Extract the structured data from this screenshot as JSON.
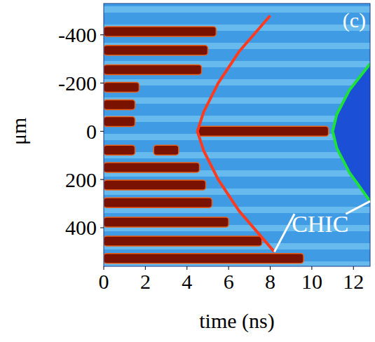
{
  "chart_data": {
    "type": "streak_image",
    "title": "(c)",
    "x_label": "time (ns)",
    "y_label": "μm",
    "xlim": [
      0,
      12.8
    ],
    "ylim": [
      560,
      -530
    ],
    "xticks": [
      0,
      2,
      4,
      6,
      8,
      10,
      12
    ],
    "yticks": [
      -400,
      -200,
      0,
      200,
      400
    ],
    "stripes": [
      {
        "y": -414,
        "t0": 0,
        "t1": 5.4
      },
      {
        "y": -336,
        "t0": 0,
        "t1": 5.0
      },
      {
        "y": -255,
        "t0": 0,
        "t1": 4.7
      },
      {
        "y": -183,
        "t0": 0,
        "t1": 1.7
      },
      {
        "y": -110,
        "t0": 0,
        "t1": 1.5
      },
      {
        "y": -40,
        "t0": 0,
        "t1": 1.5
      },
      {
        "y": 0,
        "t0": 4.5,
        "t1": 10.8
      },
      {
        "y": 78,
        "t0": 0,
        "t1": 1.5
      },
      {
        "y": 78,
        "t0": 2.4,
        "t1": 3.6
      },
      {
        "y": 150,
        "t0": 0,
        "t1": 4.6
      },
      {
        "y": 223,
        "t0": 0,
        "t1": 4.9
      },
      {
        "y": 296,
        "t0": 0,
        "t1": 5.2
      },
      {
        "y": 377,
        "t0": 0,
        "t1": 6.0
      },
      {
        "y": 455,
        "t0": 0,
        "t1": 7.6
      },
      {
        "y": 527,
        "t0": 0,
        "t1": 9.6
      }
    ],
    "series": [
      {
        "color": "#ff3b1f",
        "x": [
          8.0,
          6.5,
          5.5,
          4.8,
          4.5,
          4.8,
          5.5,
          6.5,
          8.2
        ],
        "y": [
          -480,
          -330,
          -200,
          -80,
          0,
          80,
          200,
          330,
          500
        ]
      },
      {
        "color": "#1ee03c",
        "x": [
          12.8,
          11.8,
          11.2,
          11.0,
          11.2,
          11.8,
          12.8
        ],
        "y": [
          -280,
          -170,
          -70,
          0,
          70,
          170,
          290
        ]
      }
    ],
    "annotations": [
      {
        "text": "CHIC",
        "x": 10.4,
        "y": 385
      }
    ]
  }
}
